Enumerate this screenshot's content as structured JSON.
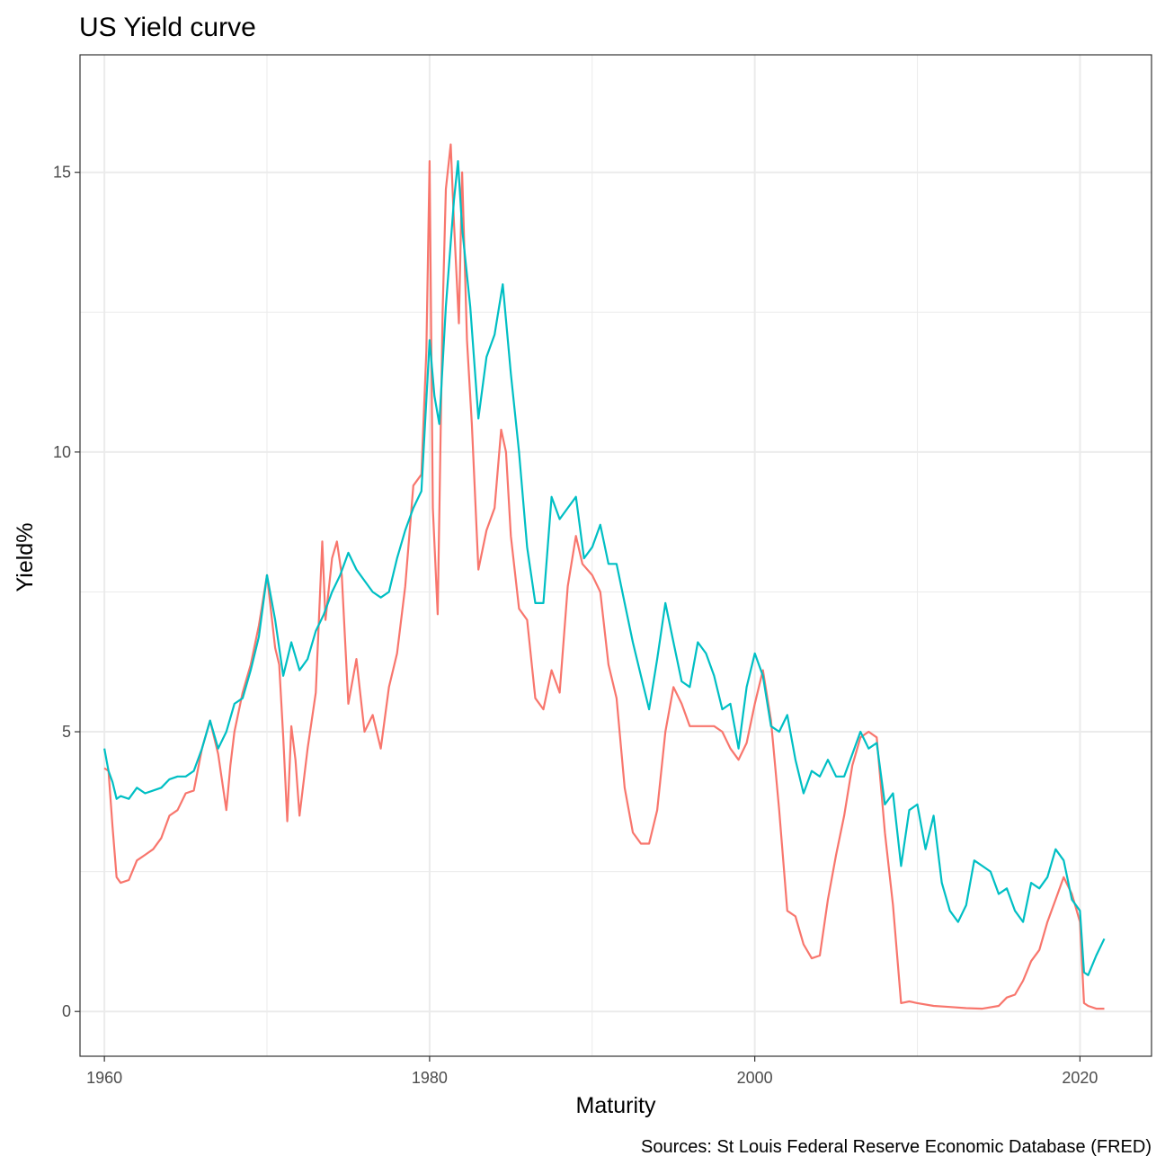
{
  "chart_data": {
    "type": "line",
    "title": "US Yield curve",
    "xlabel": "Maturity",
    "ylabel": "Yield%",
    "caption": "Sources: St Louis Federal Reserve Economic Database (FRED)",
    "xlim": [
      1958.5,
      2024.4
    ],
    "ylim": [
      -0.8,
      17.1
    ],
    "x_ticks": [
      1960,
      1980,
      2000,
      2020
    ],
    "x_tick_labels": [
      "1960",
      "1980",
      "2000",
      "2020"
    ],
    "y_ticks": [
      0,
      5,
      10,
      15
    ],
    "y_tick_labels": [
      "0",
      "5",
      "10",
      "15"
    ],
    "y_minor_ticks": [
      2.5,
      7.5,
      12.5
    ],
    "x_minor_ticks": [
      1970,
      1990,
      2010
    ],
    "grid": true,
    "legend": "none",
    "colors": {
      "red_series": "#F8766D",
      "teal_series": "#00BFC4",
      "grid": "#ebebeb",
      "panel_border": "#333333"
    },
    "series": [
      {
        "color": "#F8766D",
        "x": [
          1960.0,
          1960.25,
          1960.5,
          1960.75,
          1961.0,
          1961.5,
          1962.0,
          1962.5,
          1963.0,
          1963.5,
          1964.0,
          1964.5,
          1965.0,
          1965.5,
          1966.0,
          1966.5,
          1967.0,
          1967.5,
          1967.75,
          1968.0,
          1968.5,
          1969.0,
          1969.5,
          1970.0,
          1970.5,
          1970.75,
          1971.0,
          1971.25,
          1971.5,
          1971.75,
          1972.0,
          1972.5,
          1973.0,
          1973.4,
          1973.6,
          1974.0,
          1974.3,
          1974.6,
          1975.0,
          1975.5,
          1976.0,
          1976.5,
          1977.0,
          1977.5,
          1978.0,
          1978.5,
          1979.0,
          1979.5,
          1979.8,
          1980.0,
          1980.2,
          1980.5,
          1980.8,
          1981.0,
          1981.3,
          1981.5,
          1981.8,
          1982.0,
          1982.3,
          1982.6,
          1983.0,
          1983.5,
          1984.0,
          1984.4,
          1984.7,
          1985.0,
          1985.5,
          1986.0,
          1986.5,
          1987.0,
          1987.5,
          1988.0,
          1988.5,
          1989.0,
          1989.4,
          1990.0,
          1990.5,
          1991.0,
          1991.5,
          1992.0,
          1992.5,
          1993.0,
          1993.5,
          1994.0,
          1994.5,
          1995.0,
          1995.5,
          1996.0,
          1996.5,
          1997.0,
          1997.5,
          1998.0,
          1998.5,
          1999.0,
          1999.5,
          2000.0,
          2000.5,
          2001.0,
          2001.5,
          2002.0,
          2002.5,
          2003.0,
          2003.5,
          2004.0,
          2004.5,
          2005.0,
          2005.5,
          2006.0,
          2006.5,
          2007.0,
          2007.5,
          2008.0,
          2008.5,
          2009.0,
          2009.5,
          2010.0,
          2011.0,
          2012.0,
          2013.0,
          2014.0,
          2015.0,
          2015.5,
          2016.0,
          2016.5,
          2017.0,
          2017.5,
          2018.0,
          2018.5,
          2019.0,
          2019.5,
          2020.0,
          2020.25,
          2020.5,
          2021.0,
          2021.5
        ],
        "values": [
          4.35,
          4.3,
          3.3,
          2.4,
          2.3,
          2.35,
          2.7,
          2.8,
          2.9,
          3.1,
          3.5,
          3.6,
          3.9,
          3.95,
          4.7,
          5.2,
          4.6,
          3.6,
          4.4,
          5.0,
          5.7,
          6.2,
          6.9,
          7.8,
          6.5,
          6.2,
          4.9,
          3.4,
          5.1,
          4.5,
          3.5,
          4.7,
          5.7,
          8.4,
          7.0,
          8.1,
          8.4,
          7.8,
          5.5,
          6.3,
          5.0,
          5.3,
          4.7,
          5.8,
          6.4,
          7.6,
          9.4,
          9.6,
          11.8,
          15.2,
          9.0,
          7.1,
          12.5,
          14.7,
          15.5,
          14.1,
          12.3,
          15.0,
          12.0,
          10.5,
          7.9,
          8.6,
          9.0,
          10.4,
          10.0,
          8.5,
          7.2,
          7.0,
          5.6,
          5.4,
          6.1,
          5.7,
          7.6,
          8.5,
          8.0,
          7.8,
          7.5,
          6.2,
          5.6,
          4.0,
          3.2,
          3.0,
          3.0,
          3.6,
          5.0,
          5.8,
          5.5,
          5.1,
          5.1,
          5.1,
          5.1,
          5.0,
          4.7,
          4.5,
          4.8,
          5.5,
          6.1,
          5.2,
          3.6,
          1.8,
          1.7,
          1.2,
          0.95,
          1.0,
          2.0,
          2.8,
          3.5,
          4.4,
          4.9,
          5.0,
          4.9,
          3.2,
          1.9,
          0.15,
          0.18,
          0.15,
          0.1,
          0.08,
          0.06,
          0.05,
          0.1,
          0.25,
          0.3,
          0.55,
          0.9,
          1.1,
          1.6,
          2.0,
          2.4,
          2.1,
          1.6,
          0.15,
          0.1,
          0.05,
          0.05
        ]
      },
      {
        "color": "#00BFC4",
        "x": [
          1960.0,
          1960.25,
          1960.5,
          1960.75,
          1961.0,
          1961.5,
          1962.0,
          1962.5,
          1963.0,
          1963.5,
          1964.0,
          1964.5,
          1965.0,
          1965.5,
          1966.0,
          1966.5,
          1967.0,
          1967.5,
          1968.0,
          1968.5,
          1969.0,
          1969.5,
          1970.0,
          1970.5,
          1971.0,
          1971.5,
          1972.0,
          1972.5,
          1973.0,
          1973.5,
          1974.0,
          1974.5,
          1975.0,
          1975.5,
          1976.0,
          1976.5,
          1977.0,
          1977.5,
          1978.0,
          1978.5,
          1979.0,
          1979.5,
          1980.0,
          1980.3,
          1980.6,
          1981.0,
          1981.5,
          1981.75,
          1982.0,
          1982.5,
          1983.0,
          1983.5,
          1984.0,
          1984.5,
          1985.0,
          1985.5,
          1986.0,
          1986.5,
          1987.0,
          1987.5,
          1988.0,
          1988.5,
          1989.0,
          1989.5,
          1990.0,
          1990.5,
          1991.0,
          1991.5,
          1992.0,
          1992.5,
          1993.0,
          1993.5,
          1994.0,
          1994.5,
          1995.0,
          1995.5,
          1996.0,
          1996.5,
          1997.0,
          1997.5,
          1998.0,
          1998.5,
          1999.0,
          1999.5,
          2000.0,
          2000.5,
          2001.0,
          2001.5,
          2002.0,
          2002.5,
          2003.0,
          2003.5,
          2004.0,
          2004.5,
          2005.0,
          2005.5,
          2006.0,
          2006.5,
          2007.0,
          2007.5,
          2008.0,
          2008.5,
          2009.0,
          2009.5,
          2010.0,
          2010.5,
          2011.0,
          2011.5,
          2012.0,
          2012.5,
          2013.0,
          2013.5,
          2014.0,
          2014.5,
          2015.0,
          2015.5,
          2016.0,
          2016.5,
          2017.0,
          2017.5,
          2018.0,
          2018.5,
          2019.0,
          2019.5,
          2020.0,
          2020.25,
          2020.5,
          2021.0,
          2021.5
        ],
        "values": [
          4.7,
          4.3,
          4.1,
          3.8,
          3.85,
          3.8,
          4.0,
          3.9,
          3.95,
          4.0,
          4.15,
          4.2,
          4.2,
          4.3,
          4.7,
          5.2,
          4.7,
          5.0,
          5.5,
          5.6,
          6.1,
          6.7,
          7.8,
          7.0,
          6.0,
          6.6,
          6.1,
          6.3,
          6.8,
          7.1,
          7.5,
          7.8,
          8.2,
          7.9,
          7.7,
          7.5,
          7.4,
          7.5,
          8.1,
          8.6,
          9.0,
          9.3,
          12.0,
          11.0,
          10.5,
          12.6,
          14.5,
          15.2,
          14.0,
          12.6,
          10.6,
          11.7,
          12.1,
          13.0,
          11.4,
          10.0,
          8.3,
          7.3,
          7.3,
          9.2,
          8.8,
          9.0,
          9.2,
          8.1,
          8.3,
          8.7,
          8.0,
          8.0,
          7.3,
          6.6,
          6.0,
          5.4,
          6.3,
          7.3,
          6.6,
          5.9,
          5.8,
          6.6,
          6.4,
          6.0,
          5.4,
          5.5,
          4.7,
          5.8,
          6.4,
          6.0,
          5.1,
          5.0,
          5.3,
          4.5,
          3.9,
          4.3,
          4.2,
          4.5,
          4.2,
          4.2,
          4.6,
          5.0,
          4.7,
          4.8,
          3.7,
          3.9,
          2.6,
          3.6,
          3.7,
          2.9,
          3.5,
          2.3,
          1.8,
          1.6,
          1.9,
          2.7,
          2.6,
          2.5,
          2.1,
          2.2,
          1.8,
          1.6,
          2.3,
          2.2,
          2.4,
          2.9,
          2.7,
          2.0,
          1.8,
          0.7,
          0.65,
          1.0,
          1.3
        ]
      }
    ]
  }
}
